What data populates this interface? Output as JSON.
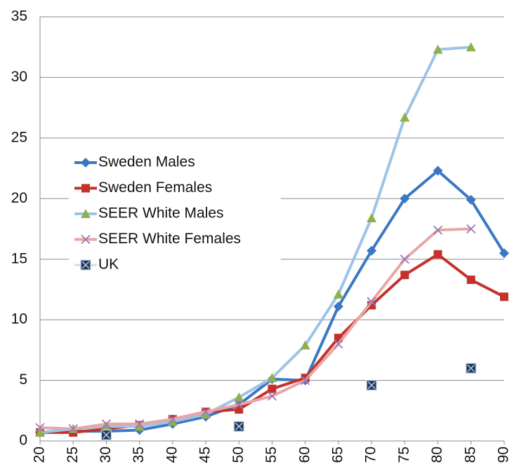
{
  "chart_data": {
    "type": "line",
    "x": [
      20,
      25,
      30,
      35,
      40,
      45,
      50,
      55,
      60,
      65,
      70,
      75,
      80,
      85,
      90
    ],
    "xlim": [
      20,
      90
    ],
    "xticks": [
      20,
      25,
      30,
      35,
      40,
      45,
      50,
      55,
      60,
      65,
      70,
      75,
      80,
      85,
      90
    ],
    "ylim": [
      0,
      35
    ],
    "yticks": [
      0,
      5,
      10,
      15,
      20,
      25,
      30,
      35
    ],
    "grid": true,
    "legend": "left",
    "series": [
      {
        "name": "Sweden Males",
        "color": "#3b78c4",
        "marker_color": "#3b78c4",
        "marker": "diamond",
        "line": true,
        "values": [
          0.7,
          0.8,
          0.8,
          0.9,
          1.4,
          2.0,
          3.0,
          5.1,
          5.0,
          11.1,
          15.7,
          20.0,
          22.3,
          19.9,
          15.5
        ]
      },
      {
        "name": "Sweden Females",
        "color": "#c4312c",
        "marker_color": "#c4312c",
        "marker": "square",
        "line": true,
        "values": [
          0.7,
          0.7,
          1.0,
          1.3,
          1.8,
          2.4,
          2.6,
          4.3,
          5.2,
          8.5,
          11.2,
          13.7,
          15.4,
          13.3,
          11.9
        ]
      },
      {
        "name": "SEER White Males",
        "color": "#9dc3e8",
        "marker_color": "#8fb04a",
        "marker": "triangle",
        "line": true,
        "values": [
          0.7,
          1.0,
          1.2,
          1.2,
          1.6,
          2.2,
          3.6,
          5.2,
          7.9,
          12.1,
          18.4,
          26.7,
          32.3,
          32.5,
          null
        ]
      },
      {
        "name": "SEER White Females",
        "color": "#e8a6a6",
        "marker_color": "#9a78b4",
        "marker": "x",
        "line": true,
        "values": [
          1.1,
          1.0,
          1.4,
          1.4,
          1.8,
          2.4,
          3.0,
          3.7,
          5.0,
          8.0,
          11.5,
          15.0,
          17.4,
          17.5,
          null
        ]
      },
      {
        "name": "UK",
        "color": "#1f3a63",
        "marker_color": "#1f3a63",
        "marker": "square-x",
        "line": false,
        "values": [
          null,
          null,
          0.5,
          null,
          null,
          null,
          1.2,
          null,
          null,
          null,
          4.6,
          null,
          null,
          6.0,
          null
        ]
      }
    ]
  }
}
